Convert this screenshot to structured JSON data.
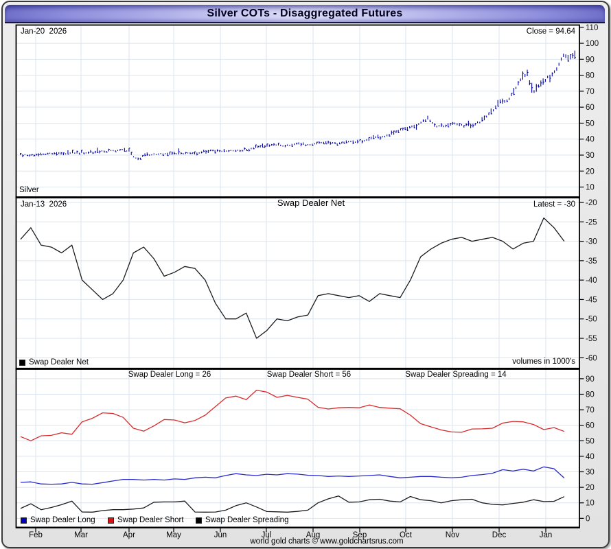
{
  "window": {
    "title": "Silver COTs - Disaggregated Futures"
  },
  "top_panel": {
    "date_label": "Jan-20  2026",
    "close_label": "Close = 94.64",
    "series_label": "Silver",
    "y_ticks": [
      110,
      100,
      90,
      80,
      70,
      60,
      50,
      40,
      30,
      20,
      10
    ]
  },
  "middle_panel": {
    "date_label": "Jan-13  2026",
    "title": "Swap Dealer Net",
    "latest_label": "Latest = -30",
    "legend_label": "Swap Dealer Net",
    "volumes_label": "volumes in 1000's",
    "y_ticks": [
      -20,
      -25,
      -30,
      -35,
      -40,
      -45,
      -50,
      -55,
      -60
    ]
  },
  "bottom_panel": {
    "titles": [
      "Swap Dealer Long = 26",
      "Swap Dealer Short = 56",
      "Swap Dealer Spreading = 14"
    ],
    "legend": [
      {
        "label": "Swap Dealer Long",
        "color": "#0000cc"
      },
      {
        "label": "Swap Dealer Short",
        "color": "#dd1111"
      },
      {
        "label": "Swap Dealer Spreading",
        "color": "#000000"
      }
    ],
    "y_ticks": [
      90,
      80,
      70,
      60,
      50,
      40,
      30,
      20,
      10,
      0
    ]
  },
  "x_axis": {
    "months": [
      "Feb",
      "Mar",
      "Apr",
      "May",
      "Jun",
      "Jul",
      "Aug",
      "Sep",
      "Oct",
      "Nov",
      "Dec",
      "Jan"
    ]
  },
  "footer": "world gold charts © www.goldchartsrus.com",
  "colors": {
    "price_bars": "#0000a0",
    "net_line": "#1c1c1c",
    "long_line": "#2929cc",
    "short_line": "#d82a2a",
    "spreading_line": "#1c1c1c",
    "grid": "#dbe4ee",
    "panel_border": "#000000"
  },
  "chart_data": [
    {
      "type": "bar",
      "name": "Silver daily price (tiny OHLC-style bars)",
      "panel": "top",
      "x_unit": "fraction of span late-Jan-2025 to Jan-20-2026",
      "ylim": [
        4,
        111
      ],
      "last_close": 94.64,
      "last_date": "Jan-20 2026",
      "close_anchors": [
        [
          0.007,
          30.4
        ],
        [
          0.025,
          29.8
        ],
        [
          0.043,
          30.6
        ],
        [
          0.061,
          30.9
        ],
        [
          0.079,
          30.5
        ],
        [
          0.097,
          31.2
        ],
        [
          0.115,
          31.4
        ],
        [
          0.133,
          31.8
        ],
        [
          0.151,
          32.2
        ],
        [
          0.169,
          32.6
        ],
        [
          0.187,
          33.2
        ],
        [
          0.2,
          32.4
        ],
        [
          0.209,
          28.8
        ],
        [
          0.216,
          27.5
        ],
        [
          0.228,
          29.8
        ],
        [
          0.245,
          30.6
        ],
        [
          0.263,
          30.9
        ],
        [
          0.281,
          30.7
        ],
        [
          0.299,
          31.3
        ],
        [
          0.317,
          31.0
        ],
        [
          0.335,
          32.4
        ],
        [
          0.353,
          32.8
        ],
        [
          0.371,
          32.3
        ],
        [
          0.389,
          33.0
        ],
        [
          0.407,
          33.3
        ],
        [
          0.425,
          34.6
        ],
        [
          0.443,
          35.9
        ],
        [
          0.461,
          36.3
        ],
        [
          0.479,
          35.7
        ],
        [
          0.497,
          36.9
        ],
        [
          0.515,
          36.2
        ],
        [
          0.533,
          37.6
        ],
        [
          0.551,
          38.1
        ],
        [
          0.569,
          37.3
        ],
        [
          0.587,
          38.2
        ],
        [
          0.605,
          38.7
        ],
        [
          0.623,
          39.6
        ],
        [
          0.641,
          41.2
        ],
        [
          0.659,
          42.3
        ],
        [
          0.677,
          44.6
        ],
        [
          0.695,
          47.1
        ],
        [
          0.713,
          48.6
        ],
        [
          0.724,
          51.6
        ],
        [
          0.733,
          53.0
        ],
        [
          0.742,
          48.4
        ],
        [
          0.76,
          48.1
        ],
        [
          0.778,
          49.6
        ],
        [
          0.796,
          48.2
        ],
        [
          0.814,
          49.2
        ],
        [
          0.832,
          52.5
        ],
        [
          0.846,
          57.5
        ],
        [
          0.86,
          64.5
        ],
        [
          0.872,
          63.9
        ],
        [
          0.88,
          66.9
        ],
        [
          0.894,
          75.4
        ],
        [
          0.908,
          80.4
        ],
        [
          0.916,
          69.7
        ],
        [
          0.924,
          71.1
        ],
        [
          0.938,
          76.8
        ],
        [
          0.952,
          80.4
        ],
        [
          0.962,
          84.0
        ],
        [
          0.972,
          92.6
        ],
        [
          0.982,
          90.4
        ],
        [
          0.993,
          94.64
        ]
      ]
    },
    {
      "type": "line",
      "name": "Swap Dealer Net",
      "panel": "middle",
      "cadence": "weekly (Feb 2025 - Jan-13 2026)",
      "ylim": [
        -62,
        -19
      ],
      "latest": -30,
      "values": [
        -29.5,
        -26.5,
        -31,
        -31.5,
        -33,
        -31,
        -40,
        -42.5,
        -45,
        -43.5,
        -40,
        -33,
        -31.5,
        -34.5,
        -39,
        -38,
        -36.5,
        -37,
        -40,
        -46,
        -50,
        -50,
        -48.5,
        -55,
        -53,
        -50,
        -50.5,
        -49.5,
        -49,
        -44,
        -43.5,
        -44,
        -44.5,
        -44,
        -45.5,
        -43.5,
        -44,
        -44.5,
        -40,
        -34,
        -32,
        -30.5,
        -29.5,
        -29,
        -30,
        -29.5,
        -29,
        -30,
        -32,
        -30.5,
        -30,
        -24,
        -26.5,
        -30
      ]
    },
    {
      "type": "line",
      "name": "Swap Dealer positions",
      "panel": "bottom",
      "cadence": "weekly (Feb 2025 - Jan-13 2026)",
      "ylim": [
        -5,
        95
      ],
      "series": [
        {
          "name": "Swap Dealer Long",
          "latest": 26,
          "values": [
            23.2,
            23.5,
            22.2,
            22,
            22.2,
            23.2,
            22.2,
            22,
            23,
            24.1,
            25.1,
            25.1,
            24.7,
            25.1,
            24.7,
            25.4,
            25.1,
            26.1,
            26.5,
            26.1,
            27.6,
            28.8,
            28,
            27.6,
            28.4,
            28,
            28.8,
            28.5,
            27.8,
            27.6,
            27,
            27.3,
            27,
            27.3,
            27.6,
            28,
            27,
            26.1,
            26.5,
            27,
            27,
            26.5,
            26.2,
            26.5,
            27.6,
            28.2,
            29.1,
            31.4,
            30.5,
            31.7,
            30.5,
            33.2,
            32,
            26
          ]
        },
        {
          "name": "Swap Dealer Short",
          "latest": 56,
          "values": [
            52.7,
            50,
            53.2,
            53.5,
            55.2,
            54.2,
            62.2,
            64.5,
            68,
            67.6,
            65.1,
            58.1,
            56.2,
            59.6,
            63.7,
            63.4,
            61.6,
            63.1,
            66.5,
            72.1,
            77.6,
            78.8,
            76.5,
            82.6,
            81.4,
            78,
            79.3,
            78,
            76.8,
            71.6,
            70.5,
            71.3,
            71.5,
            71.3,
            73.1,
            71.5,
            71,
            70.6,
            66.5,
            61,
            59,
            57,
            55.7,
            55.5,
            57.6,
            57.7,
            58.1,
            61.4,
            62.5,
            62.2,
            60.5,
            57.2,
            58.5,
            56
          ]
        },
        {
          "name": "Swap Dealer Spreading",
          "latest": 14,
          "values": [
            6.4,
            9.4,
            5.6,
            7,
            8.8,
            11.1,
            4.1,
            4,
            5,
            5.6,
            5.6,
            6,
            6.7,
            10.4,
            10.6,
            10.6,
            11.1,
            4.1,
            4,
            4.1,
            5.3,
            8.2,
            10,
            7.3,
            4.4,
            4.2,
            4,
            4.5,
            5.3,
            10,
            12.6,
            14.4,
            10.4,
            10.6,
            12,
            12.3,
            11.1,
            10.6,
            14.1,
            12,
            11.4,
            10,
            11.4,
            12,
            12.3,
            10,
            9,
            8.7,
            9.6,
            10.4,
            12,
            10.8,
            11,
            14
          ]
        }
      ]
    }
  ]
}
